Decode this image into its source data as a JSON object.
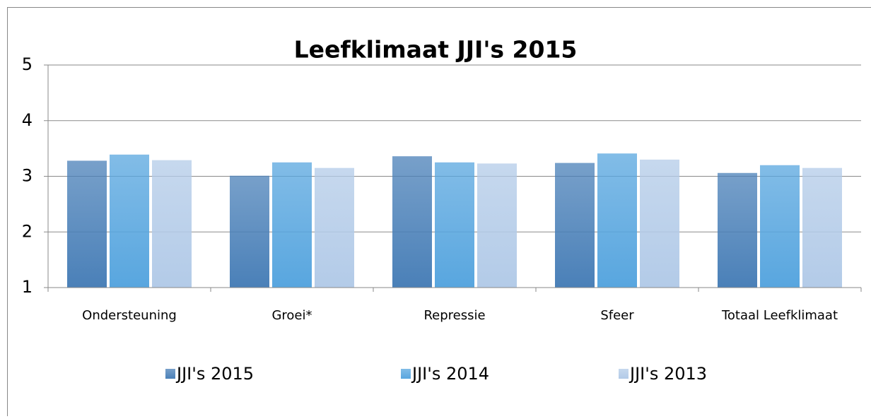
{
  "chart_data": {
    "type": "bar",
    "title": "Leefklimaat JJI's 2015",
    "categories": [
      "Ondersteuning",
      "Groei*",
      "Repressie",
      "Sfeer",
      "Totaal Leefklimaat"
    ],
    "series": [
      {
        "name": "JJI's 2015",
        "color": "#4a80b8",
        "values": [
          3.28,
          3.01,
          3.36,
          3.24,
          3.06
        ]
      },
      {
        "name": "JJI's 2014",
        "color": "#58a6df",
        "values": [
          3.39,
          3.25,
          3.25,
          3.41,
          3.2
        ]
      },
      {
        "name": "JJI's 2013",
        "color": "#b3cbe8",
        "values": [
          3.29,
          3.15,
          3.23,
          3.3,
          3.15
        ]
      }
    ],
    "ylim": [
      1,
      5
    ],
    "yticks": [
      1,
      2,
      3,
      4,
      5
    ],
    "grid": true,
    "legend": "bottom"
  }
}
